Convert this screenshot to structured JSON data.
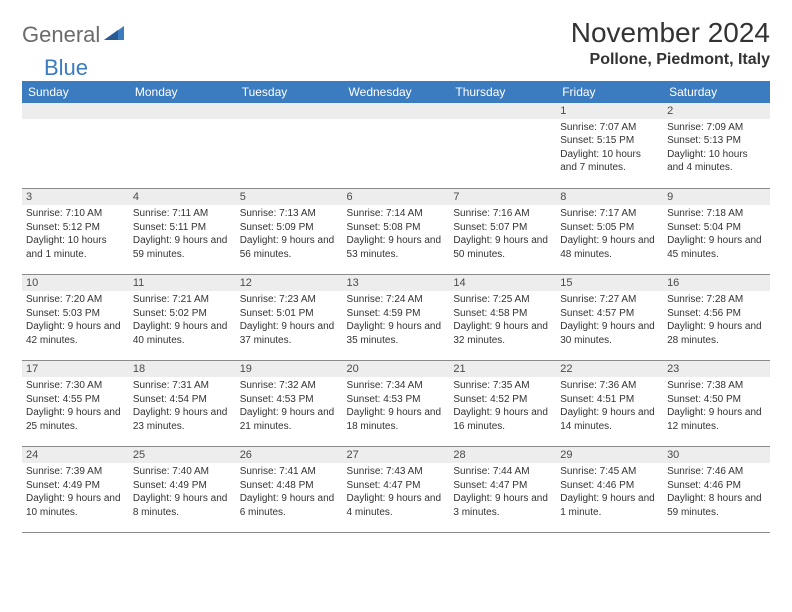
{
  "logo": {
    "text1": "General",
    "text2": "Blue"
  },
  "title": "November 2024",
  "location": "Pollone, Piedmont, Italy",
  "colors": {
    "header_bg": "#3b7bbf",
    "header_fg": "#ffffff",
    "daynum_bg": "#ededed",
    "border": "#8a8a8a",
    "logo_gray": "#6b6b6b",
    "logo_blue": "#3b7bbf"
  },
  "weekdays": [
    "Sunday",
    "Monday",
    "Tuesday",
    "Wednesday",
    "Thursday",
    "Friday",
    "Saturday"
  ],
  "weeks": [
    [
      null,
      null,
      null,
      null,
      null,
      {
        "n": "1",
        "sunrise": "Sunrise: 7:07 AM",
        "sunset": "Sunset: 5:15 PM",
        "daylight": "Daylight: 10 hours and 7 minutes."
      },
      {
        "n": "2",
        "sunrise": "Sunrise: 7:09 AM",
        "sunset": "Sunset: 5:13 PM",
        "daylight": "Daylight: 10 hours and 4 minutes."
      }
    ],
    [
      {
        "n": "3",
        "sunrise": "Sunrise: 7:10 AM",
        "sunset": "Sunset: 5:12 PM",
        "daylight": "Daylight: 10 hours and 1 minute."
      },
      {
        "n": "4",
        "sunrise": "Sunrise: 7:11 AM",
        "sunset": "Sunset: 5:11 PM",
        "daylight": "Daylight: 9 hours and 59 minutes."
      },
      {
        "n": "5",
        "sunrise": "Sunrise: 7:13 AM",
        "sunset": "Sunset: 5:09 PM",
        "daylight": "Daylight: 9 hours and 56 minutes."
      },
      {
        "n": "6",
        "sunrise": "Sunrise: 7:14 AM",
        "sunset": "Sunset: 5:08 PM",
        "daylight": "Daylight: 9 hours and 53 minutes."
      },
      {
        "n": "7",
        "sunrise": "Sunrise: 7:16 AM",
        "sunset": "Sunset: 5:07 PM",
        "daylight": "Daylight: 9 hours and 50 minutes."
      },
      {
        "n": "8",
        "sunrise": "Sunrise: 7:17 AM",
        "sunset": "Sunset: 5:05 PM",
        "daylight": "Daylight: 9 hours and 48 minutes."
      },
      {
        "n": "9",
        "sunrise": "Sunrise: 7:18 AM",
        "sunset": "Sunset: 5:04 PM",
        "daylight": "Daylight: 9 hours and 45 minutes."
      }
    ],
    [
      {
        "n": "10",
        "sunrise": "Sunrise: 7:20 AM",
        "sunset": "Sunset: 5:03 PM",
        "daylight": "Daylight: 9 hours and 42 minutes."
      },
      {
        "n": "11",
        "sunrise": "Sunrise: 7:21 AM",
        "sunset": "Sunset: 5:02 PM",
        "daylight": "Daylight: 9 hours and 40 minutes."
      },
      {
        "n": "12",
        "sunrise": "Sunrise: 7:23 AM",
        "sunset": "Sunset: 5:01 PM",
        "daylight": "Daylight: 9 hours and 37 minutes."
      },
      {
        "n": "13",
        "sunrise": "Sunrise: 7:24 AM",
        "sunset": "Sunset: 4:59 PM",
        "daylight": "Daylight: 9 hours and 35 minutes."
      },
      {
        "n": "14",
        "sunrise": "Sunrise: 7:25 AM",
        "sunset": "Sunset: 4:58 PM",
        "daylight": "Daylight: 9 hours and 32 minutes."
      },
      {
        "n": "15",
        "sunrise": "Sunrise: 7:27 AM",
        "sunset": "Sunset: 4:57 PM",
        "daylight": "Daylight: 9 hours and 30 minutes."
      },
      {
        "n": "16",
        "sunrise": "Sunrise: 7:28 AM",
        "sunset": "Sunset: 4:56 PM",
        "daylight": "Daylight: 9 hours and 28 minutes."
      }
    ],
    [
      {
        "n": "17",
        "sunrise": "Sunrise: 7:30 AM",
        "sunset": "Sunset: 4:55 PM",
        "daylight": "Daylight: 9 hours and 25 minutes."
      },
      {
        "n": "18",
        "sunrise": "Sunrise: 7:31 AM",
        "sunset": "Sunset: 4:54 PM",
        "daylight": "Daylight: 9 hours and 23 minutes."
      },
      {
        "n": "19",
        "sunrise": "Sunrise: 7:32 AM",
        "sunset": "Sunset: 4:53 PM",
        "daylight": "Daylight: 9 hours and 21 minutes."
      },
      {
        "n": "20",
        "sunrise": "Sunrise: 7:34 AM",
        "sunset": "Sunset: 4:53 PM",
        "daylight": "Daylight: 9 hours and 18 minutes."
      },
      {
        "n": "21",
        "sunrise": "Sunrise: 7:35 AM",
        "sunset": "Sunset: 4:52 PM",
        "daylight": "Daylight: 9 hours and 16 minutes."
      },
      {
        "n": "22",
        "sunrise": "Sunrise: 7:36 AM",
        "sunset": "Sunset: 4:51 PM",
        "daylight": "Daylight: 9 hours and 14 minutes."
      },
      {
        "n": "23",
        "sunrise": "Sunrise: 7:38 AM",
        "sunset": "Sunset: 4:50 PM",
        "daylight": "Daylight: 9 hours and 12 minutes."
      }
    ],
    [
      {
        "n": "24",
        "sunrise": "Sunrise: 7:39 AM",
        "sunset": "Sunset: 4:49 PM",
        "daylight": "Daylight: 9 hours and 10 minutes."
      },
      {
        "n": "25",
        "sunrise": "Sunrise: 7:40 AM",
        "sunset": "Sunset: 4:49 PM",
        "daylight": "Daylight: 9 hours and 8 minutes."
      },
      {
        "n": "26",
        "sunrise": "Sunrise: 7:41 AM",
        "sunset": "Sunset: 4:48 PM",
        "daylight": "Daylight: 9 hours and 6 minutes."
      },
      {
        "n": "27",
        "sunrise": "Sunrise: 7:43 AM",
        "sunset": "Sunset: 4:47 PM",
        "daylight": "Daylight: 9 hours and 4 minutes."
      },
      {
        "n": "28",
        "sunrise": "Sunrise: 7:44 AM",
        "sunset": "Sunset: 4:47 PM",
        "daylight": "Daylight: 9 hours and 3 minutes."
      },
      {
        "n": "29",
        "sunrise": "Sunrise: 7:45 AM",
        "sunset": "Sunset: 4:46 PM",
        "daylight": "Daylight: 9 hours and 1 minute."
      },
      {
        "n": "30",
        "sunrise": "Sunrise: 7:46 AM",
        "sunset": "Sunset: 4:46 PM",
        "daylight": "Daylight: 8 hours and 59 minutes."
      }
    ]
  ]
}
